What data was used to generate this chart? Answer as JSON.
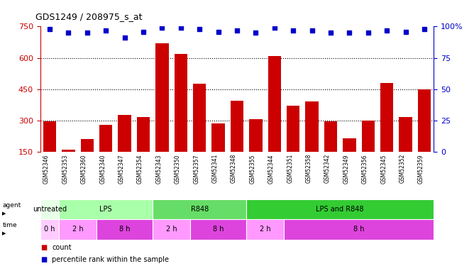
{
  "title": "GDS1249 / 208975_s_at",
  "samples": [
    "GSM52346",
    "GSM52353",
    "GSM52360",
    "GSM52340",
    "GSM52347",
    "GSM52354",
    "GSM52343",
    "GSM52350",
    "GSM52357",
    "GSM52341",
    "GSM52348",
    "GSM52355",
    "GSM52344",
    "GSM52351",
    "GSM52358",
    "GSM52342",
    "GSM52349",
    "GSM52356",
    "GSM52345",
    "GSM52352",
    "GSM52359"
  ],
  "bar_values": [
    295,
    160,
    210,
    280,
    325,
    315,
    670,
    620,
    475,
    285,
    395,
    305,
    610,
    370,
    390,
    295,
    215,
    300,
    480,
    315,
    450
  ],
  "percentile_values": [
    98,
    95,
    95,
    97,
    91,
    96,
    99,
    99,
    98,
    96,
    97,
    95,
    99,
    97,
    97,
    95,
    95,
    95,
    97,
    96,
    98
  ],
  "bar_color": "#cc0000",
  "dot_color": "#0000cc",
  "ylim_left": [
    150,
    750
  ],
  "ylim_right": [
    0,
    100
  ],
  "yticks_left": [
    150,
    300,
    450,
    600,
    750
  ],
  "yticks_right": [
    0,
    25,
    50,
    75,
    100
  ],
  "grid_lines": [
    300,
    450,
    600
  ],
  "agent_groups": [
    {
      "label": "untreated",
      "start": 0,
      "end": 1,
      "color": "#e8ffe8"
    },
    {
      "label": "LPS",
      "start": 1,
      "end": 6,
      "color": "#aaffaa"
    },
    {
      "label": "R848",
      "start": 6,
      "end": 11,
      "color": "#66dd66"
    },
    {
      "label": "LPS and R848",
      "start": 11,
      "end": 21,
      "color": "#33cc33"
    }
  ],
  "time_groups": [
    {
      "label": "0 h",
      "start": 0,
      "end": 1,
      "color": "#ffccff"
    },
    {
      "label": "2 h",
      "start": 1,
      "end": 3,
      "color": "#ff99ff"
    },
    {
      "label": "8 h",
      "start": 3,
      "end": 6,
      "color": "#dd44dd"
    },
    {
      "label": "2 h",
      "start": 6,
      "end": 8,
      "color": "#ff99ff"
    },
    {
      "label": "8 h",
      "start": 8,
      "end": 11,
      "color": "#dd44dd"
    },
    {
      "label": "2 h",
      "start": 11,
      "end": 13,
      "color": "#ff99ff"
    },
    {
      "label": "8 h",
      "start": 13,
      "end": 21,
      "color": "#dd44dd"
    }
  ],
  "bar_color_left_axis": "#cc0000",
  "right_axis_color": "#0000cc",
  "sample_label_bg": "#cccccc",
  "background_color": "#ffffff"
}
